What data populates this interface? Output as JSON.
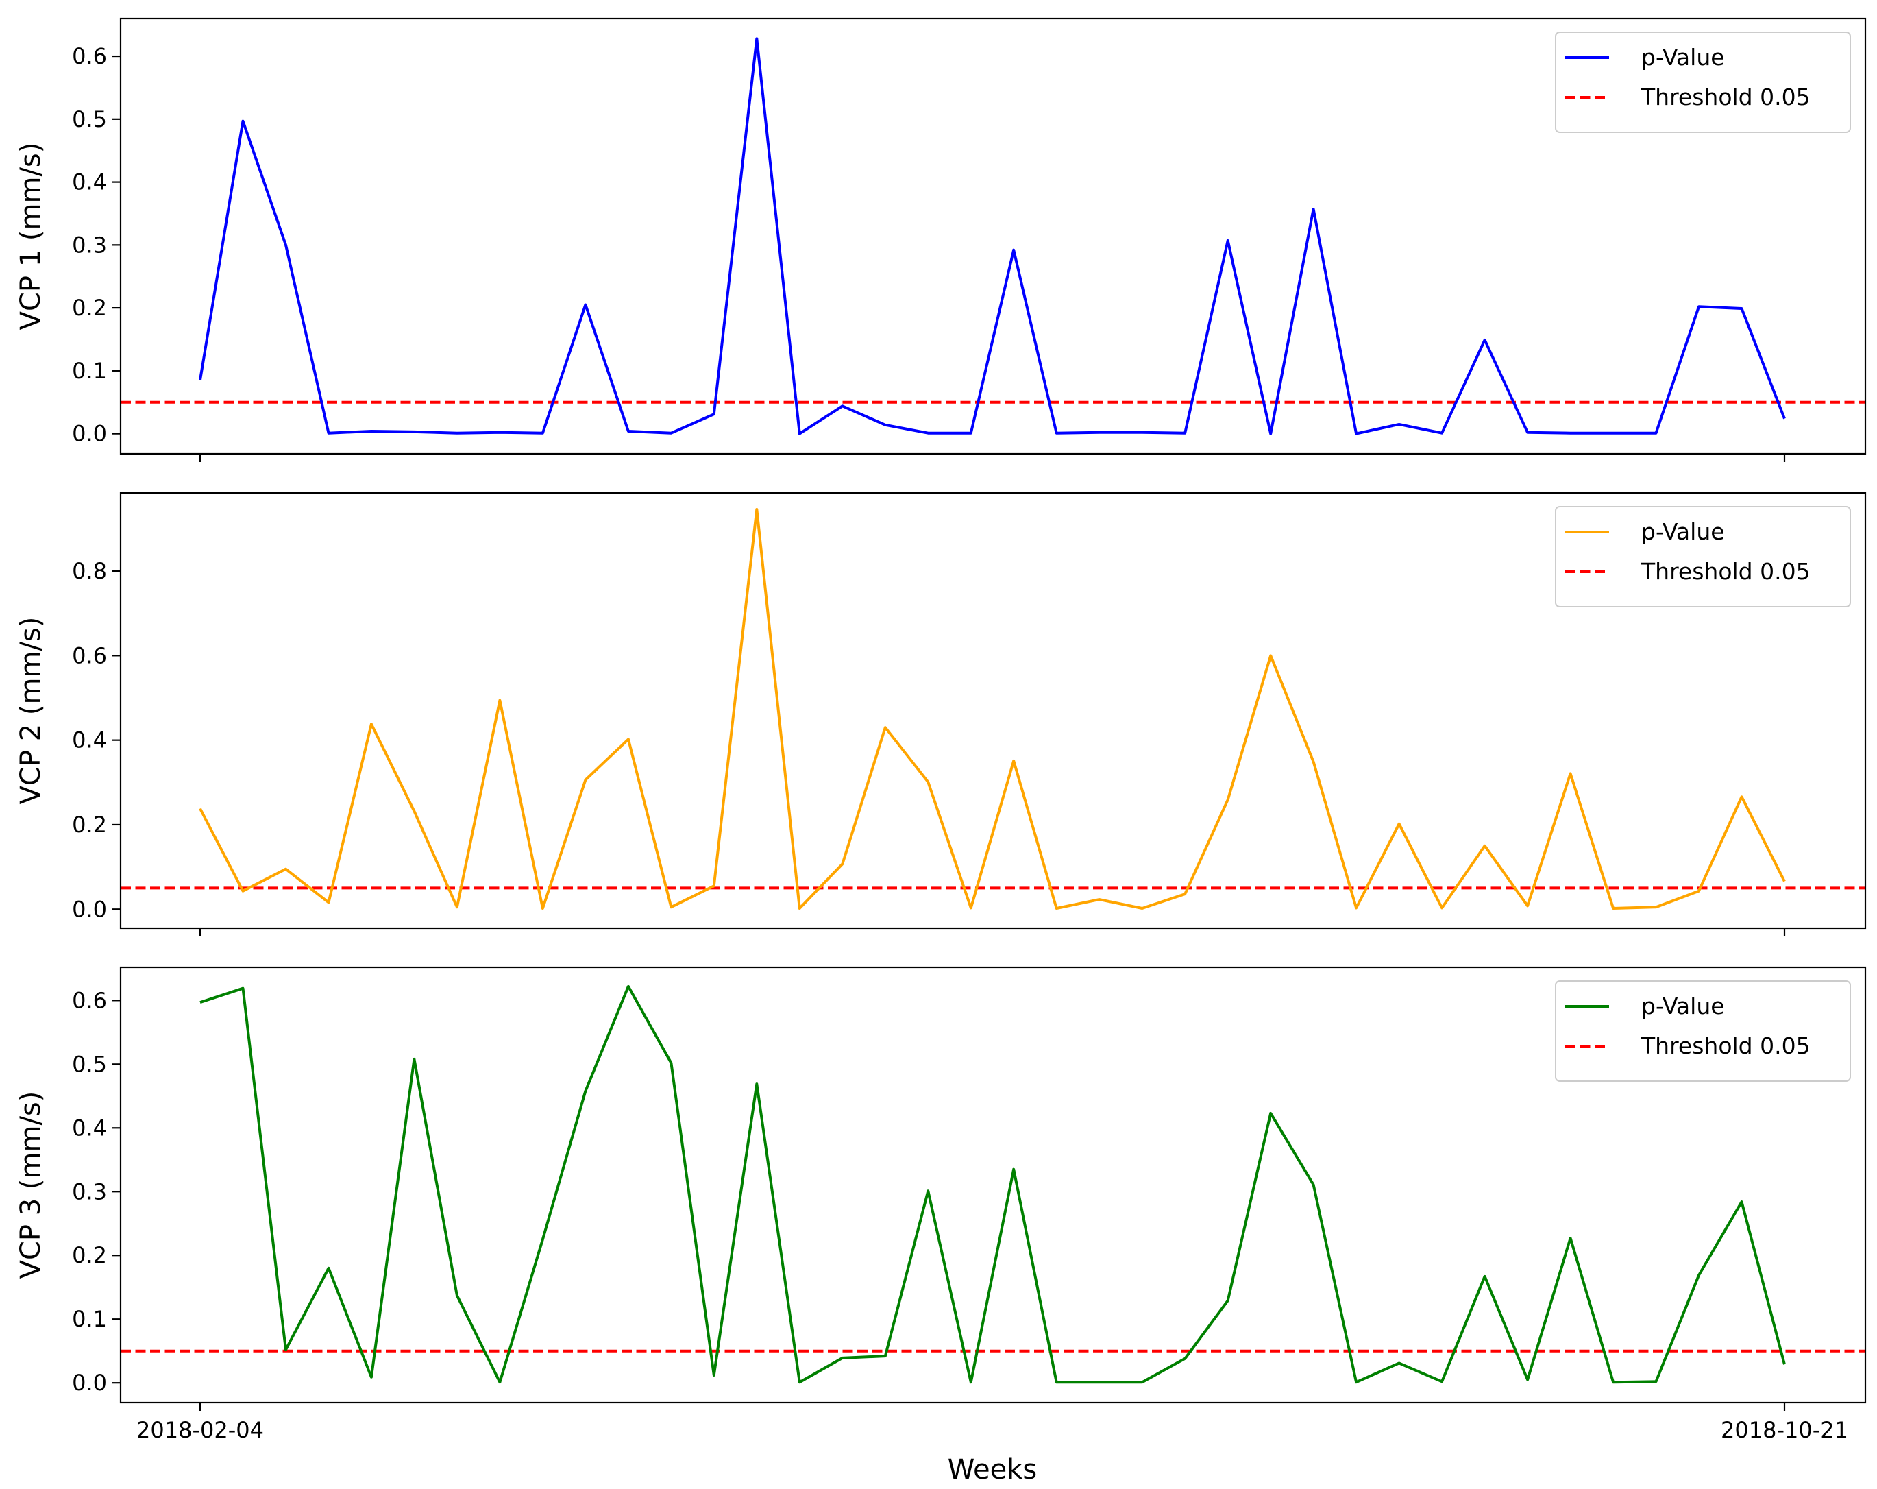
{
  "chart_data": {
    "type": "line",
    "xlabel": "Weeks",
    "x_tick_labels": [
      "2018-02-04",
      "2018-10-21"
    ],
    "threshold": 0.05,
    "panels": [
      {
        "ylabel": "VCP 1 (mm/s)",
        "ylim": [
          -0.032,
          0.66
        ],
        "yticks": [
          0.0,
          0.1,
          0.2,
          0.3,
          0.4,
          0.5,
          0.6
        ],
        "ytick_labels": [
          "0.0",
          "0.1",
          "0.2",
          "0.3",
          "0.4",
          "0.5",
          "0.6"
        ],
        "series": [
          {
            "name": "p-Value",
            "color": "#0000ff",
            "values": [
              0.085,
              0.497,
              0.3,
              0.001,
              0.004,
              0.003,
              0.001,
              0.002,
              0.001,
              0.205,
              0.004,
              0.001,
              0.031,
              0.628,
              0.0,
              0.044,
              0.014,
              0.001,
              0.001,
              0.292,
              0.001,
              0.002,
              0.002,
              0.001,
              0.307,
              0.0,
              0.357,
              0.0,
              0.015,
              0.001,
              0.149,
              0.002,
              0.001,
              0.001,
              0.001,
              0.202,
              0.199,
              0.024
            ]
          },
          {
            "name": "Threshold 0.05",
            "color": "#ff0000",
            "style": "dashed",
            "value": 0.05
          }
        ],
        "legend": {
          "location": "top-right",
          "entries": [
            "p-Value",
            "Threshold 0.05"
          ]
        }
      },
      {
        "ylabel": "VCP 2 (mm/s)",
        "ylim": [
          -0.045,
          0.985
        ],
        "yticks": [
          0.0,
          0.2,
          0.4,
          0.6,
          0.8
        ],
        "ytick_labels": [
          "0.0",
          "0.2",
          "0.4",
          "0.6",
          "0.8"
        ],
        "series": [
          {
            "name": "p-Value",
            "color": "#ffa500",
            "values": [
              0.238,
              0.043,
              0.095,
              0.016,
              0.438,
              0.232,
              0.005,
              0.494,
              0.002,
              0.306,
              0.402,
              0.005,
              0.055,
              0.946,
              0.002,
              0.107,
              0.43,
              0.301,
              0.003,
              0.351,
              0.002,
              0.023,
              0.002,
              0.036,
              0.259,
              0.6,
              0.349,
              0.003,
              0.202,
              0.003,
              0.15,
              0.008,
              0.321,
              0.002,
              0.005,
              0.043,
              0.266,
              0.066
            ]
          },
          {
            "name": "Threshold 0.05",
            "color": "#ff0000",
            "style": "dashed",
            "value": 0.05
          }
        ],
        "legend": {
          "location": "top-right",
          "entries": [
            "p-Value",
            "Threshold 0.05"
          ]
        }
      },
      {
        "ylabel": "VCP 3 (mm/s)",
        "ylim": [
          -0.031,
          0.652
        ],
        "yticks": [
          0.0,
          0.1,
          0.2,
          0.3,
          0.4,
          0.5,
          0.6
        ],
        "ytick_labels": [
          "0.0",
          "0.1",
          "0.2",
          "0.3",
          "0.4",
          "0.5",
          "0.6"
        ],
        "series": [
          {
            "name": "p-Value",
            "color": "#008000",
            "values": [
              0.597,
              0.619,
              0.052,
              0.18,
              0.009,
              0.508,
              0.137,
              0.001,
              0.225,
              0.458,
              0.622,
              0.502,
              0.012,
              0.469,
              0.001,
              0.039,
              0.042,
              0.301,
              0.001,
              0.335,
              0.001,
              0.001,
              0.001,
              0.038,
              0.129,
              0.423,
              0.311,
              0.001,
              0.031,
              0.002,
              0.167,
              0.005,
              0.227,
              0.001,
              0.002,
              0.169,
              0.284,
              0.029
            ]
          },
          {
            "name": "Threshold 0.05",
            "color": "#ff0000",
            "style": "dashed",
            "value": 0.05
          }
        ],
        "legend": {
          "location": "top-right",
          "entries": [
            "p-Value",
            "Threshold 0.05"
          ]
        }
      }
    ]
  }
}
